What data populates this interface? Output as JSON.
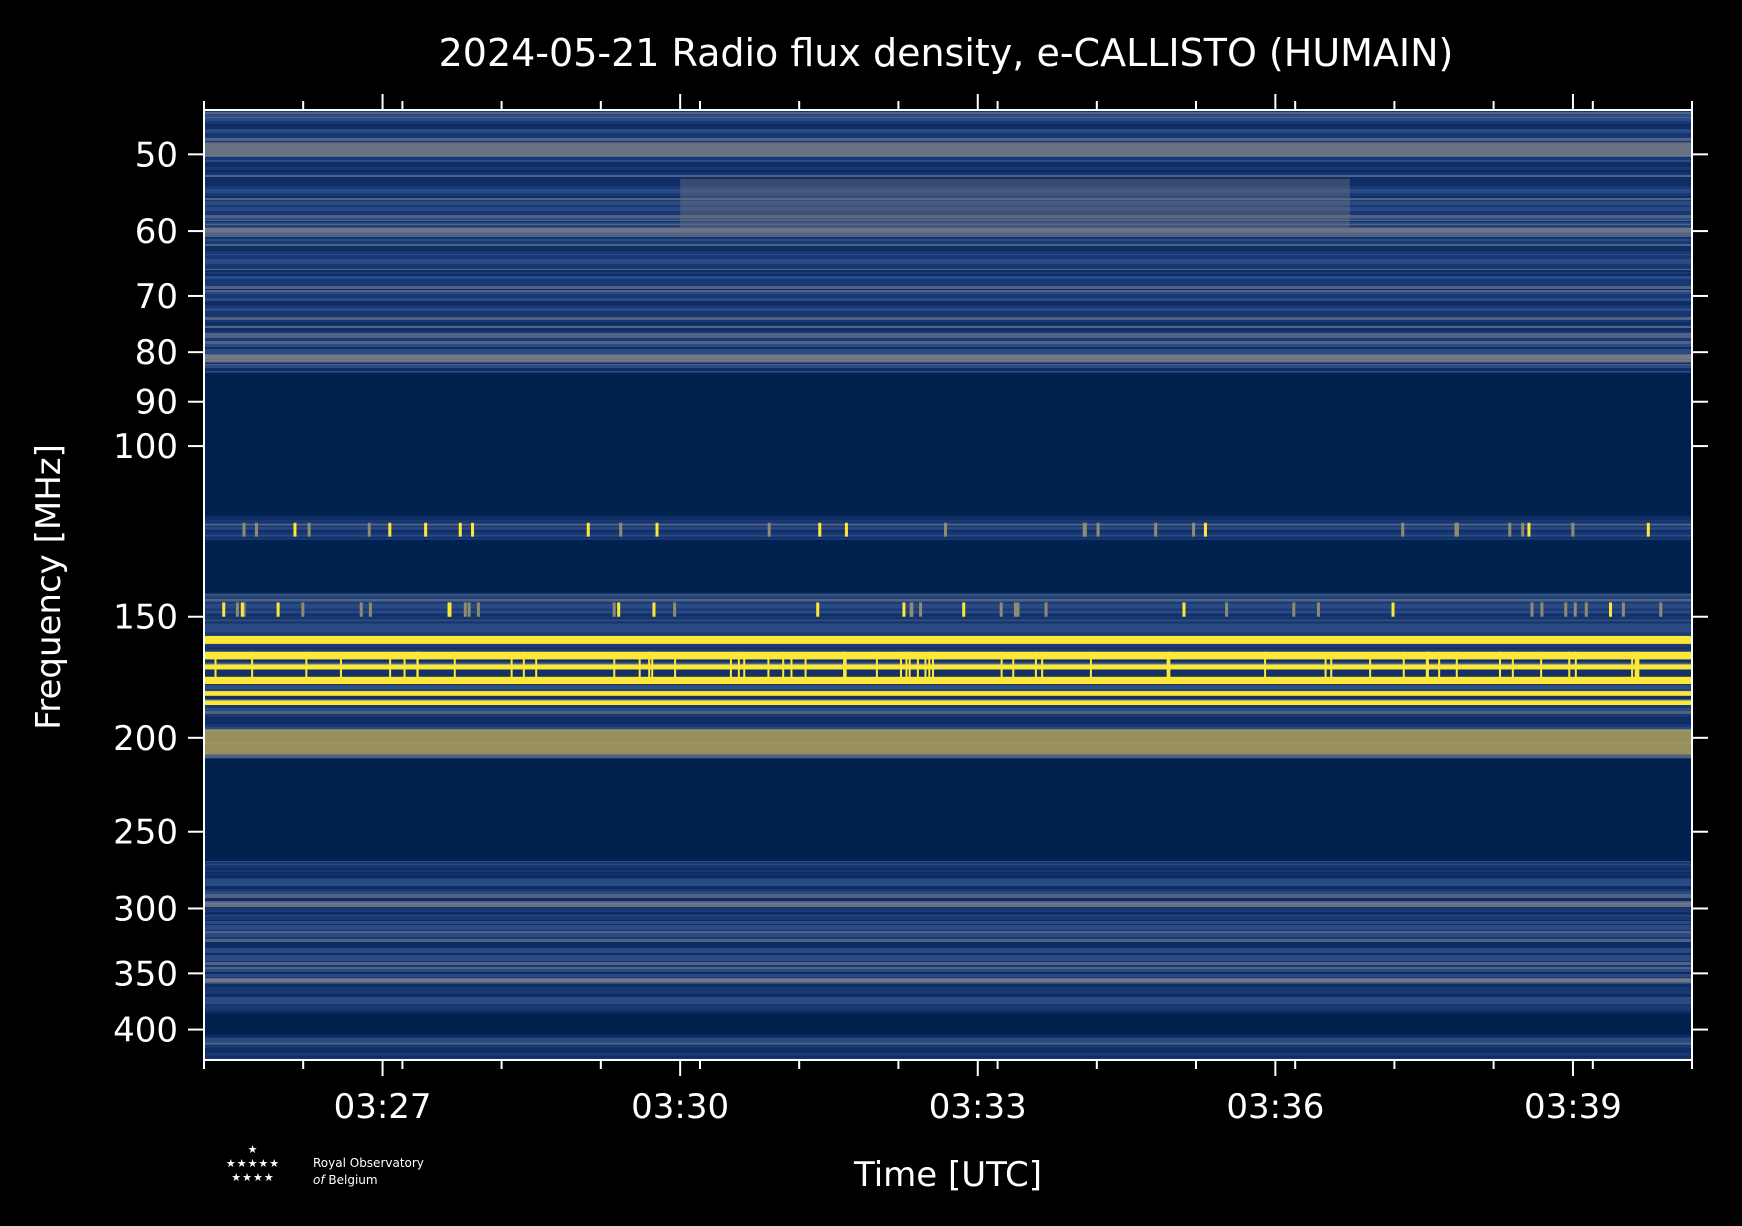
{
  "chart_data": {
    "type": "heatmap",
    "title": "2024-05-21 Radio flux density, e-CALLISTO (HUMAIN)",
    "xlabel": "Time [UTC]",
    "ylabel": "Frequency [MHz]",
    "x_ticks": [
      "03:27",
      "03:30",
      "03:33",
      "03:36",
      "03:39"
    ],
    "y_ticks": [
      50,
      60,
      70,
      80,
      90,
      100,
      150,
      200,
      250,
      300,
      350,
      400
    ],
    "yscale": "log",
    "ylim": [
      45,
      430
    ],
    "xlim": [
      "03:25:12",
      "03:40:12"
    ],
    "colormap": "cividis",
    "colors": {
      "background": "#000000",
      "low": "#00224e",
      "mid": "#4a5b78",
      "high": "#fde737"
    },
    "bands": [
      {
        "range_mhz": [
          45,
          84
        ],
        "level": "mid-noise"
      },
      {
        "range_mhz": [
          84,
          118
        ],
        "level": "low"
      },
      {
        "range_mhz": [
          118,
          125
        ],
        "level": "mid-noise"
      },
      {
        "range_mhz": [
          125,
          142
        ],
        "level": "low"
      },
      {
        "range_mhz": [
          142,
          156
        ],
        "level": "mid-noise"
      },
      {
        "range_mhz": [
          156,
          185
        ],
        "level": "high"
      },
      {
        "range_mhz": [
          185,
          210
        ],
        "level": "mid-noise"
      },
      {
        "range_mhz": [
          210,
          248
        ],
        "level": "low"
      },
      {
        "range_mhz": [
          248,
          268
        ],
        "level": "low"
      },
      {
        "range_mhz": [
          268,
          385
        ],
        "level": "mid-noise"
      },
      {
        "range_mhz": [
          385,
          405
        ],
        "level": "low"
      },
      {
        "range_mhz": [
          405,
          430
        ],
        "level": "mid-noise"
      }
    ],
    "grid": false
  },
  "logo": {
    "stars_top": "★",
    "stars_mid": "★★★★★",
    "stars_bot": "★★★★",
    "line1": "Royal Observatory",
    "line2_italic": "of",
    "line2": " Belgium"
  }
}
